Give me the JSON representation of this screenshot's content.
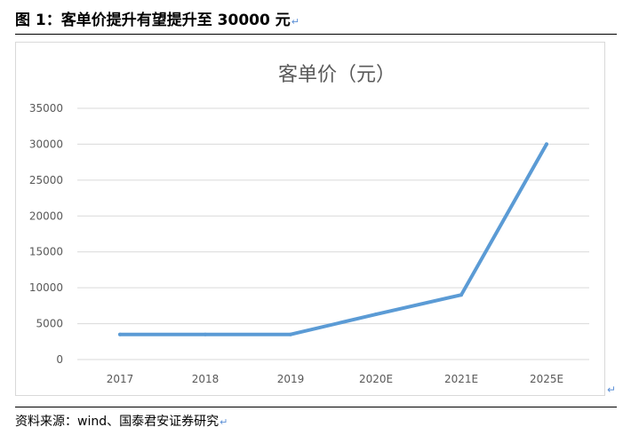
{
  "figure": {
    "title": "图 1：客单价提升有望提升至 30000 元",
    "return_mark": "↵",
    "source": "资料来源：wind、国泰君安证券研究"
  },
  "colors": {
    "line": "#5b9bd5",
    "grid": "#d9d9d9",
    "axis_text": "#595959",
    "title_text": "#595959"
  },
  "chart_data": {
    "type": "line",
    "title": "客单价（元）",
    "categories": [
      "2017",
      "2018",
      "2019",
      "2020E",
      "2021E",
      "2025E"
    ],
    "series": [
      {
        "values": [
          3500,
          3500,
          3500,
          6300,
          9000,
          30000
        ]
      }
    ],
    "ylim": [
      0,
      35000
    ],
    "yticks": [
      0,
      5000,
      10000,
      15000,
      20000,
      25000,
      30000,
      35000
    ],
    "ytick_labels": [
      "0",
      "5000",
      "10000",
      "15000",
      "20000",
      "25000",
      "30000",
      "35000"
    ],
    "grid": true,
    "legend": "none"
  }
}
